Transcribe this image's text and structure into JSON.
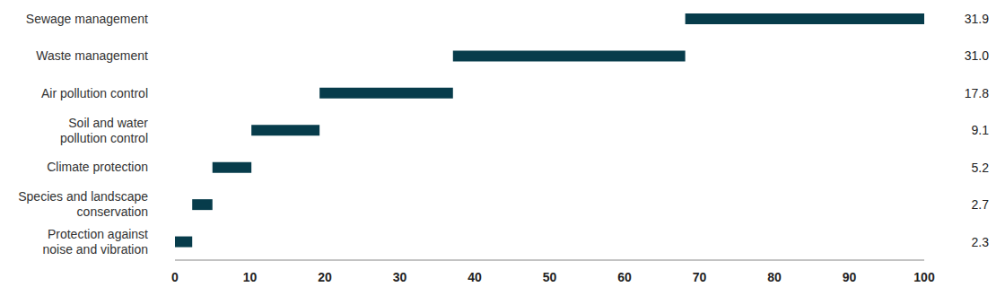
{
  "chart_data": {
    "type": "waterfall",
    "orientation": "horizontal",
    "categories": [
      "Sewage management",
      "Waste management",
      "Air pollution control",
      "Soil and water pollution control",
      "Climate protection",
      "Species and landscape conservation",
      "Protection against noise and vibration"
    ],
    "values": [
      31.9,
      31.0,
      17.8,
      9.1,
      5.2,
      2.7,
      2.3
    ],
    "value_labels": [
      "31.9",
      "31.0",
      "17.8",
      "9.1",
      "5.2",
      "2.7",
      "2.3"
    ],
    "color": "#073c4b",
    "xlim": [
      0,
      100
    ],
    "xticks": [
      0,
      10,
      20,
      30,
      40,
      50,
      60,
      70,
      80,
      90,
      100
    ],
    "data_labels": true,
    "grid": false
  }
}
